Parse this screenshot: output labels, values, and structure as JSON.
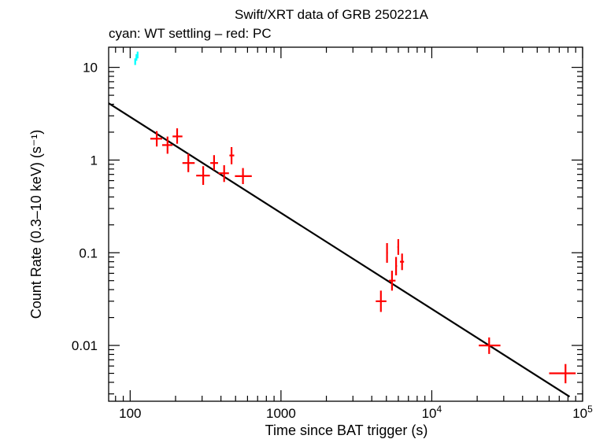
{
  "chart_data": {
    "type": "scatter",
    "title": "Swift/XRT data of GRB 250221A",
    "subtitle": "cyan: WT settling – red: PC",
    "xlabel": "Time since BAT trigger (s)",
    "ylabel": "Count Rate (0.3–10 keV) (s⁻¹)",
    "xscale": "log",
    "yscale": "log",
    "xlim": [
      72,
      100000
    ],
    "ylim": [
      0.0025,
      16.5
    ],
    "x_ticks": [
      {
        "value": 100,
        "label": "100"
      },
      {
        "value": 1000,
        "label": "1000"
      },
      {
        "value": 10000,
        "label": "10",
        "exp": "4"
      },
      {
        "value": 100000,
        "label": "10",
        "exp": "5"
      }
    ],
    "y_ticks": [
      {
        "value": 10,
        "label": "10"
      },
      {
        "value": 1,
        "label": "1"
      },
      {
        "value": 0.1,
        "label": "0.1"
      },
      {
        "value": 0.01,
        "label": "0.01"
      }
    ],
    "series": [
      {
        "name": "WT settling",
        "color": "#00ffff",
        "points": [
          {
            "x": 108,
            "xerr": [
              106.8,
              109.2
            ],
            "y": 11.5,
            "yerr": [
              10.6,
              12.5
            ]
          },
          {
            "x": 110,
            "xerr": [
              108.8,
              111.2
            ],
            "y": 12.8,
            "yerr": [
              11.8,
              13.9
            ]
          },
          {
            "x": 112,
            "xerr": [
              110.8,
              113.2
            ],
            "y": 13.6,
            "yerr": [
              12.5,
              14.8
            ]
          }
        ]
      },
      {
        "name": "PC",
        "color": "#ff0000",
        "points": [
          {
            "x": 150,
            "xerr": [
              136,
              163
            ],
            "y": 1.7,
            "yerr": [
              1.4,
              2.05
            ]
          },
          {
            "x": 177,
            "xerr": [
              163,
              191
            ],
            "y": 1.45,
            "yerr": [
              1.17,
              1.79
            ]
          },
          {
            "x": 205,
            "xerr": [
              191,
              222
            ],
            "y": 1.8,
            "yerr": [
              1.5,
              2.2
            ]
          },
          {
            "x": 243,
            "xerr": [
              222,
              268
            ],
            "y": 0.93,
            "yerr": [
              0.74,
              1.17
            ]
          },
          {
            "x": 305,
            "xerr": [
              274,
              338
            ],
            "y": 0.68,
            "yerr": [
              0.54,
              0.86
            ]
          },
          {
            "x": 360,
            "xerr": [
              340,
              383
            ],
            "y": 0.93,
            "yerr": [
              0.78,
              1.13
            ]
          },
          {
            "x": 420,
            "xerr": [
              385,
              452
            ],
            "y": 0.72,
            "yerr": [
              0.58,
              0.88
            ]
          },
          {
            "x": 470,
            "xerr": [
              455,
              490
            ],
            "y": 1.12,
            "yerr": [
              0.9,
              1.38
            ]
          },
          {
            "x": 560,
            "xerr": [
              495,
              640
            ],
            "y": 0.67,
            "yerr": [
              0.55,
              0.82
            ]
          },
          {
            "x": 4600,
            "xerr": [
              4250,
              5000
            ],
            "y": 0.03,
            "yerr": [
              0.023,
              0.039
            ]
          },
          {
            "x": 5050,
            "xerr": [
              5000,
              5110
            ],
            "y": 0.1,
            "yerr": [
              0.078,
              0.127
            ]
          },
          {
            "x": 5450,
            "xerr": [
              5200,
              5750
            ],
            "y": 0.05,
            "yerr": [
              0.039,
              0.064
            ]
          },
          {
            "x": 5800,
            "xerr": [
              5720,
              5880
            ],
            "y": 0.072,
            "yerr": [
              0.057,
              0.09
            ]
          },
          {
            "x": 6000,
            "xerr": [
              5920,
              6080
            ],
            "y": 0.115,
            "yerr": [
              0.095,
              0.14
            ]
          },
          {
            "x": 6350,
            "xerr": [
              6150,
              6550
            ],
            "y": 0.08,
            "yerr": [
              0.065,
              0.098
            ]
          },
          {
            "x": 24000,
            "xerr": [
              20500,
              28500
            ],
            "y": 0.01,
            "yerr": [
              0.0081,
              0.0122
            ]
          },
          {
            "x": 77000,
            "xerr": [
              60000,
              90000
            ],
            "y": 0.005,
            "yerr": [
              0.0039,
              0.0063
            ]
          }
        ]
      }
    ],
    "model_line": {
      "name": "power-law fit",
      "color": "#000000",
      "points": [
        {
          "x": 72,
          "y": 4.1
        },
        {
          "x": 82000,
          "y": 0.0028
        }
      ]
    }
  }
}
